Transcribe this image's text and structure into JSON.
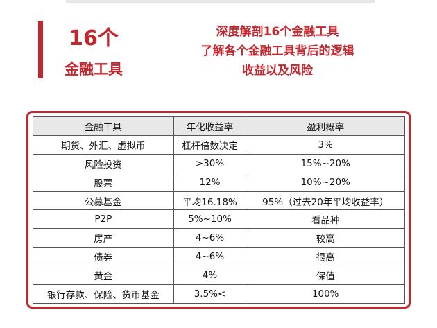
{
  "header": {
    "big": "16个",
    "sub": "金融工具",
    "lines": [
      "深度解剖16个金融工具",
      "了解各个金融工具背后的逻辑",
      "收益以及风险"
    ]
  },
  "table": {
    "columns": [
      "金融工具",
      "年化收益率",
      "盈利概率"
    ],
    "rows": [
      [
        "期货、外汇、虚拟币",
        "杠杆倍数决定",
        "3%"
      ],
      [
        "风险投资",
        ">30%",
        "15%~20%"
      ],
      [
        "股票",
        "12%",
        "10%~20%"
      ],
      [
        "公募基金",
        "平均16.18%",
        "95%（过去20年平均收益率）"
      ],
      [
        "P2P",
        "5%~10%",
        "看品种"
      ],
      [
        "房产",
        "4~6%",
        "较高"
      ],
      [
        "债券",
        "4~6%",
        "很高"
      ],
      [
        "黄金",
        "4%",
        "保值"
      ],
      [
        "银行存款、保险、货币基金",
        "3.5%<",
        "100%"
      ]
    ]
  }
}
